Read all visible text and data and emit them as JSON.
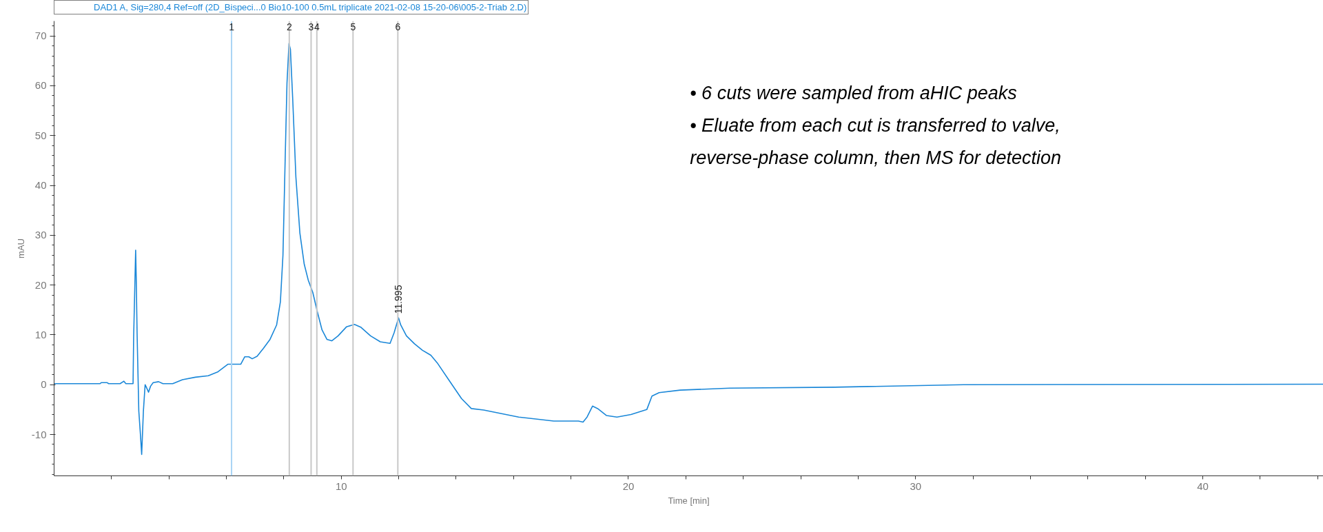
{
  "chart_data": {
    "type": "line",
    "xlabel": "Time [min]",
    "ylabel": "mAU",
    "xlim": [
      0,
      44.2
    ],
    "ylim": [
      -18.3,
      73
    ],
    "xticks": [
      {
        "value": 2,
        "label": null
      },
      {
        "value": 4,
        "label": null
      },
      {
        "value": 6,
        "label": null
      },
      {
        "value": 8,
        "label": null
      },
      10,
      {
        "value": 12,
        "label": null
      },
      {
        "value": 14,
        "label": null
      },
      {
        "value": 16,
        "label": null
      },
      {
        "value": 18,
        "label": null
      },
      20,
      {
        "value": 22,
        "label": null
      },
      {
        "value": 24,
        "label": null
      },
      {
        "value": 26,
        "label": null
      },
      {
        "value": 28,
        "label": null
      },
      30,
      {
        "value": 32,
        "label": null
      },
      {
        "value": 34,
        "label": null
      },
      {
        "value": 36,
        "label": null
      },
      {
        "value": 38,
        "label": null
      },
      40,
      {
        "value": 42,
        "label": null
      },
      {
        "value": 44,
        "label": null
      }
    ],
    "yticks": [
      -10,
      0,
      10,
      20,
      30,
      40,
      50,
      60,
      70
    ],
    "grid": false,
    "legend": "top",
    "marker": "none",
    "line_style": "solid",
    "series": [
      {
        "name": "DAD1 A, Sig=280,4 Ref=off (2D_Bispeci...0 Bio10-100 0.5mL triplicate 2021-02-08 15-20-06\\005-2-Triab 2.D)",
        "color": "#1a87d8",
        "x": [
          0,
          1.6,
          1.64,
          1.85,
          1.9,
          2.3,
          2.43,
          2.5,
          2.75,
          2.77,
          2.84,
          2.86,
          2.89,
          2.95,
          3.01,
          3.05,
          3.11,
          3.17,
          3.22,
          3.29,
          3.36,
          3.45,
          3.64,
          3.79,
          4.13,
          4.47,
          4.92,
          5.37,
          5.71,
          6.05,
          6.5,
          6.64,
          6.78,
          6.9,
          7.07,
          7.29,
          7.52,
          7.75,
          7.88,
          7.97,
          8.05,
          8.11,
          8.18,
          8.23,
          8.31,
          8.42,
          8.56,
          8.71,
          8.85,
          9.01,
          9.16,
          9.33,
          9.5,
          9.67,
          9.89,
          10.18,
          10.46,
          10.69,
          11.02,
          11.36,
          11.7,
          11.84,
          11.995,
          12.07,
          12.27,
          12.55,
          12.83,
          13.12,
          13.34,
          13.74,
          14.19,
          14.53,
          14.96,
          16.18,
          17.4,
          18.26,
          18.42,
          18.56,
          18.75,
          18.93,
          19.24,
          19.6,
          20.09,
          20.64,
          20.82,
          21.07,
          21.8,
          23.52,
          27.18,
          31.68,
          44.2
        ],
        "values": [
          0.2,
          0.2,
          0.4,
          0.4,
          0.2,
          0.2,
          0.7,
          0.2,
          0.2,
          9.4,
          27,
          21.6,
          10.4,
          -5.3,
          -10.3,
          -14,
          -5.3,
          0,
          -0.6,
          -1.5,
          -0.3,
          0.4,
          0.6,
          0.2,
          0.2,
          1.0,
          1.5,
          1.8,
          2.6,
          4.1,
          4.1,
          5.6,
          5.6,
          5.2,
          5.7,
          7.3,
          9.1,
          12,
          16.6,
          26,
          46,
          60.5,
          68.5,
          67.3,
          57.3,
          41.7,
          30.4,
          24.2,
          21,
          18.5,
          14.8,
          11,
          9.1,
          8.8,
          9.8,
          11.6,
          12.1,
          11.5,
          9.8,
          8.6,
          8.3,
          10.4,
          13.4,
          12,
          9.8,
          8.2,
          6.9,
          5.9,
          4.4,
          1.0,
          -2.8,
          -4.8,
          -5.1,
          -6.5,
          -7.3,
          -7.3,
          -7.5,
          -6.5,
          -4.3,
          -4.8,
          -6.2,
          -6.5,
          -6.0,
          -5.0,
          -2.3,
          -1.6,
          -1.1,
          -0.7,
          -0.5,
          0.0,
          0.1
        ]
      }
    ],
    "ref_lines": [
      {
        "axis": "x",
        "value": 6.18,
        "color": "#a8d4f5"
      },
      {
        "axis": "x",
        "value": 8.19,
        "color": "#c8c8c8"
      },
      {
        "axis": "x",
        "value": 8.95,
        "color": "#c8c8c8"
      },
      {
        "axis": "x",
        "value": 9.15,
        "color": "#c8c8c8"
      },
      {
        "axis": "x",
        "value": 10.41,
        "color": "#c8c8c8"
      },
      {
        "axis": "x",
        "value": 11.97,
        "color": "#c8c8c8"
      }
    ],
    "annotations": [
      {
        "text": "1",
        "x": 6.18,
        "y": 73
      },
      {
        "text": "2",
        "x": 8.19,
        "y": 73
      },
      {
        "text": "3",
        "x": 8.95,
        "y": 73
      },
      {
        "text": "4",
        "x": 9.15,
        "y": 73
      },
      {
        "text": "5",
        "x": 10.41,
        "y": 73
      },
      {
        "text": "6",
        "x": 11.97,
        "y": 73
      },
      {
        "text": "11.995",
        "x": 11.995,
        "y": 13.4
      },
      "• 6 cuts were sampled from aHIC peaks",
      "• Eluate from each cut is transferred to valve, reverse-phase column, then MS for detection"
    ]
  }
}
